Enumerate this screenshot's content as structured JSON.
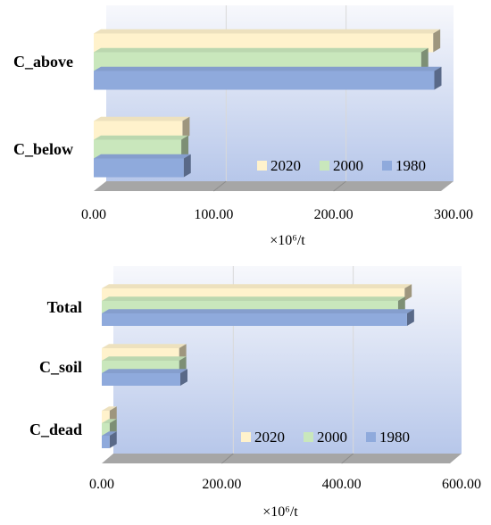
{
  "colors": {
    "2020": "#FFF2CC",
    "2000": "#C9E7BC",
    "1980": "#8FAADC",
    "wall_top": "#F7F8FC",
    "wall_bottom": "#B7C7EA",
    "floor": "#A6A6A6",
    "gridline": "#D9D9D9"
  },
  "chart_data": [
    {
      "type": "bar",
      "orientation": "horizontal",
      "style": "3d",
      "categories": [
        "C_above",
        "C_below"
      ],
      "series": [
        {
          "name": "2020",
          "values": [
            283,
            74
          ]
        },
        {
          "name": "2000",
          "values": [
            273,
            73
          ]
        },
        {
          "name": "1980",
          "values": [
            284,
            75
          ]
        }
      ],
      "xlim": [
        0,
        300
      ],
      "ticks": [
        "0.00",
        "100.00",
        "200.00",
        "300.00"
      ],
      "xlabel": "×10⁶/t",
      "grid": true,
      "legend": "bottom-right"
    },
    {
      "type": "bar",
      "orientation": "horizontal",
      "style": "3d",
      "categories": [
        "Total",
        "C_soil",
        "C_dead"
      ],
      "series": [
        {
          "name": "2020",
          "values": [
            505,
            129,
            13
          ]
        },
        {
          "name": "2000",
          "values": [
            494,
            129,
            13
          ]
        },
        {
          "name": "1980",
          "values": [
            509,
            131,
            13
          ]
        }
      ],
      "xlim": [
        0,
        600
      ],
      "ticks": [
        "0.00",
        "200.00",
        "400.00",
        "600.00"
      ],
      "xlabel": "×10⁶/t",
      "grid": true,
      "legend": "bottom-right"
    }
  ]
}
